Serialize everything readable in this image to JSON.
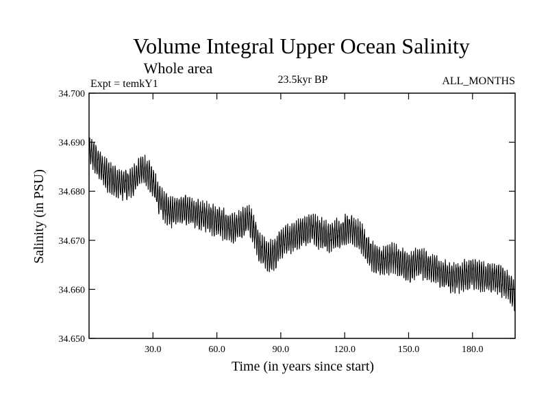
{
  "chart_data": {
    "type": "line",
    "title": "Volume Integral Upper Ocean Salinity",
    "subtitle": "Whole area",
    "experiment_label": "Expt = temkY1",
    "period_label": "23.5kyr BP",
    "months_label": "ALL_MONTHS",
    "xlabel": "Time (in years since start)",
    "ylabel": "Salinity (in PSU)",
    "xlim": [
      0,
      200
    ],
    "ylim": [
      34.65,
      34.7
    ],
    "x_ticks": [
      {
        "value": 30,
        "label": "30.0"
      },
      {
        "value": 60,
        "label": "60.0"
      },
      {
        "value": 90,
        "label": "90.0"
      },
      {
        "value": 120,
        "label": "120.0"
      },
      {
        "value": 150,
        "label": "150.0"
      },
      {
        "value": 180,
        "label": "180.0"
      }
    ],
    "y_ticks": [
      {
        "value": 34.65,
        "label": "34.650"
      },
      {
        "value": 34.66,
        "label": "34.660"
      },
      {
        "value": 34.67,
        "label": "34.670"
      },
      {
        "value": 34.68,
        "label": "34.680"
      },
      {
        "value": 34.69,
        "label": "34.690"
      },
      {
        "value": 34.7,
        "label": "34.700"
      }
    ],
    "series": [
      {
        "name": "salinity",
        "sampling": "monthly",
        "trend": {
          "x": [
            0,
            3,
            8,
            13,
            18,
            22,
            25,
            28,
            33,
            38,
            43,
            50,
            57,
            62,
            68,
            72,
            75,
            78,
            80,
            84,
            88,
            90,
            95,
            100,
            104,
            108,
            113,
            118,
            122,
            126,
            129,
            133,
            138,
            142,
            146,
            150,
            155,
            160,
            165,
            170,
            175,
            180,
            185,
            190,
            194,
            197,
            200
          ],
          "y": [
            34.6885,
            34.6865,
            34.6835,
            34.6815,
            34.6815,
            34.6825,
            34.6845,
            34.6835,
            34.6785,
            34.6755,
            34.6765,
            34.6755,
            34.6745,
            34.6735,
            34.6725,
            34.6735,
            34.6745,
            34.6715,
            34.6685,
            34.6665,
            34.6675,
            34.6695,
            34.6705,
            34.6715,
            34.6725,
            34.6715,
            34.6705,
            34.6715,
            34.6725,
            34.6715,
            34.6695,
            34.6665,
            34.6655,
            34.6665,
            34.6655,
            34.6645,
            34.6655,
            34.6645,
            34.6635,
            34.6625,
            34.6625,
            34.6635,
            34.6625,
            34.6625,
            34.6615,
            34.6605,
            34.6585
          ]
        },
        "oscillation_amplitude": 0.0026,
        "min_value": 34.6545,
        "max_value": 34.693
      }
    ]
  },
  "colors": {
    "line": "#000000",
    "axis": "#000000",
    "background": "#ffffff"
  }
}
